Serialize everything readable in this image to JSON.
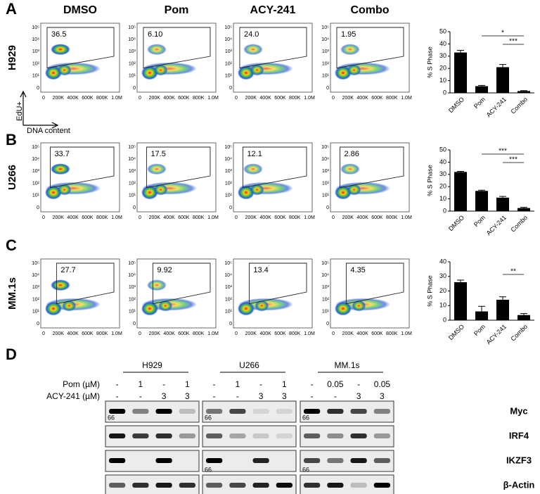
{
  "panel_letters": [
    "A",
    "B",
    "C",
    "D"
  ],
  "flow": {
    "columns": [
      "DMSO",
      "Pom",
      "ACY-241",
      "Combo"
    ],
    "rows": [
      {
        "name": "H929",
        "gates": [
          "36.5",
          "6.10",
          "24.0",
          "1.95"
        ]
      },
      {
        "name": "U266",
        "gates": [
          "33.7",
          "17.5",
          "12.1",
          "2.86"
        ]
      },
      {
        "name": "MM.1s",
        "gates": [
          "27.7",
          "9.92",
          "13.4",
          "4.35"
        ]
      }
    ],
    "x_tick_labels": [
      "0",
      "200K",
      "400K",
      "600K",
      "800K",
      "1.0M"
    ],
    "y_tick_labels": [
      "10⁵",
      "10⁴",
      "10³",
      "10²",
      "10¹",
      "0"
    ],
    "y_axis_label": "EdU+",
    "x_axis_label": "DNA content"
  },
  "chart_data": [
    {
      "type": "bar",
      "y_label": "% S Phase",
      "categories": [
        "DMSO",
        "Pom",
        "ACY-241",
        "Combo"
      ],
      "values": [
        33,
        5.5,
        21,
        1.5
      ],
      "errors": [
        1.8,
        0.6,
        2.2,
        0.4
      ],
      "color": "#000000",
      "ylim": [
        0,
        50
      ],
      "yticks": [
        0,
        10,
        20,
        30,
        40,
        50
      ],
      "significance": [
        {
          "between": [
            "Pom",
            "Combo"
          ],
          "label": "*"
        },
        {
          "between": [
            "ACY-241",
            "Combo"
          ],
          "label": "***"
        }
      ]
    },
    {
      "type": "bar",
      "y_label": "% S Phase",
      "categories": [
        "DMSO",
        "Pom",
        "ACY-241",
        "Combo"
      ],
      "values": [
        32,
        16.5,
        11,
        2.5
      ],
      "errors": [
        0.5,
        0.6,
        1,
        0.6
      ],
      "color": "#000000",
      "ylim": [
        0,
        50
      ],
      "yticks": [
        0,
        10,
        20,
        30,
        40,
        50
      ],
      "significance": [
        {
          "between": [
            "Pom",
            "Combo"
          ],
          "label": "***"
        },
        {
          "between": [
            "ACY-241",
            "Combo"
          ],
          "label": "***"
        }
      ]
    },
    {
      "type": "bar",
      "y_label": "% S Phase",
      "categories": [
        "DMSO",
        "Pom",
        "ACY-241",
        "Combo"
      ],
      "values": [
        26,
        6,
        14,
        3.5
      ],
      "errors": [
        1.5,
        3.5,
        2,
        1
      ],
      "color": "#000000",
      "ylim": [
        0,
        40
      ],
      "yticks": [
        0,
        10,
        20,
        30,
        40
      ],
      "significance": [
        {
          "between": [
            "ACY-241",
            "Combo"
          ],
          "label": "**"
        }
      ]
    }
  ],
  "blot": {
    "row_labels": [
      "Pom (µM)",
      "ACY-241 (µM)"
    ],
    "groups": [
      {
        "name": "H929",
        "pom": [
          "-",
          "1",
          "-",
          "1"
        ],
        "acy": [
          "-",
          "-",
          "3",
          "3"
        ]
      },
      {
        "name": "U266",
        "pom": [
          "-",
          "1",
          "-",
          "1"
        ],
        "acy": [
          "-",
          "-",
          "3",
          "3"
        ]
      },
      {
        "name": "MM.1s",
        "pom": [
          "-",
          "0.05",
          "-",
          "0.05"
        ],
        "acy": [
          "-",
          "-",
          "3",
          "3"
        ]
      }
    ],
    "proteins": [
      "Myc",
      "IRF4",
      "IKZF3",
      "β-Actin"
    ],
    "marker": "66"
  }
}
